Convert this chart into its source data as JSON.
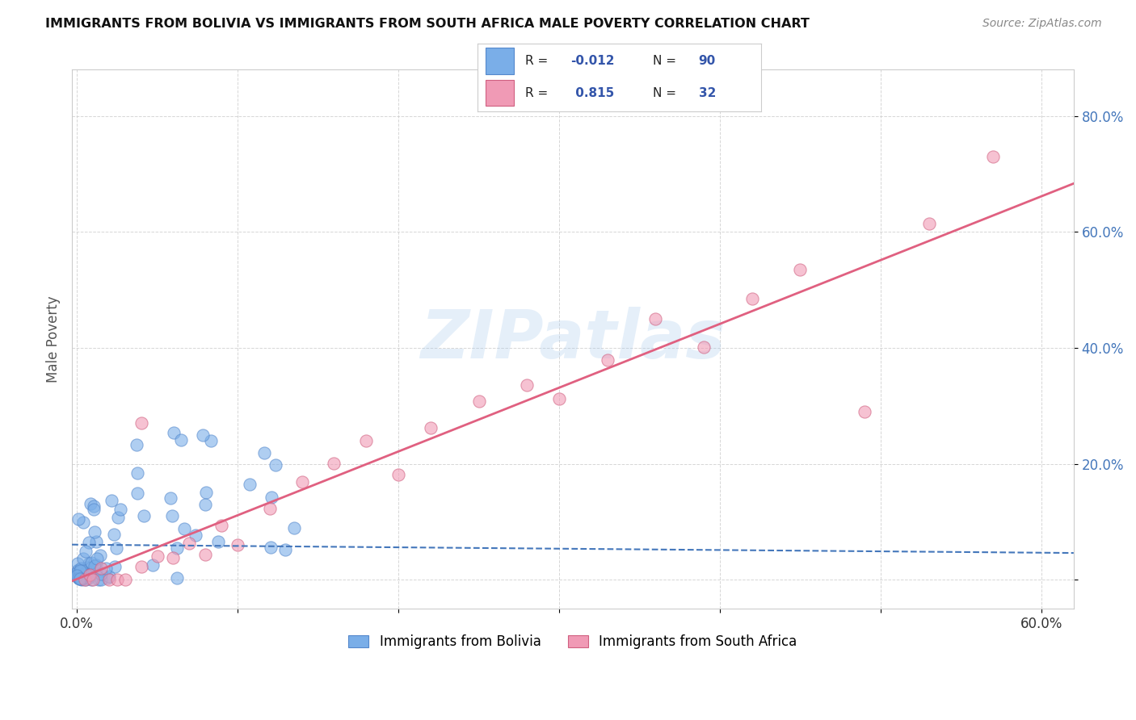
{
  "title": "IMMIGRANTS FROM BOLIVIA VS IMMIGRANTS FROM SOUTH AFRICA MALE POVERTY CORRELATION CHART",
  "source": "Source: ZipAtlas.com",
  "ylabel": "Male Poverty",
  "bolivia_color": "#7aaee8",
  "bolivia_edge_color": "#5588cc",
  "south_africa_color": "#f09ab5",
  "south_africa_edge_color": "#d06080",
  "bolivia_R": -0.012,
  "bolivia_N": 90,
  "south_africa_R": 0.815,
  "south_africa_N": 32,
  "watermark": "ZIPatlas",
  "legend_labels": [
    "Immigrants from Bolivia",
    "Immigrants from South Africa"
  ],
  "background_color": "#ffffff",
  "grid_color": "#cccccc",
  "title_color": "#1a1a2e",
  "bolivia_line_color": "#4477bb",
  "south_africa_line_color": "#e06080",
  "stat_r_color": "#3355aa",
  "stat_n_color": "#3355aa",
  "xlim": [
    -0.003,
    0.62
  ],
  "ylim": [
    -0.05,
    0.88
  ],
  "x_tick_positions": [
    0.0,
    0.1,
    0.2,
    0.3,
    0.4,
    0.5,
    0.6
  ],
  "x_tick_labels": [
    "0.0%",
    "",
    "",
    "",
    "",
    "",
    "60.0%"
  ],
  "y_tick_positions": [
    0.0,
    0.2,
    0.4,
    0.6,
    0.8
  ],
  "y_tick_labels_right": [
    "",
    "20.0%",
    "40.0%",
    "60.0%",
    "80.0%"
  ]
}
